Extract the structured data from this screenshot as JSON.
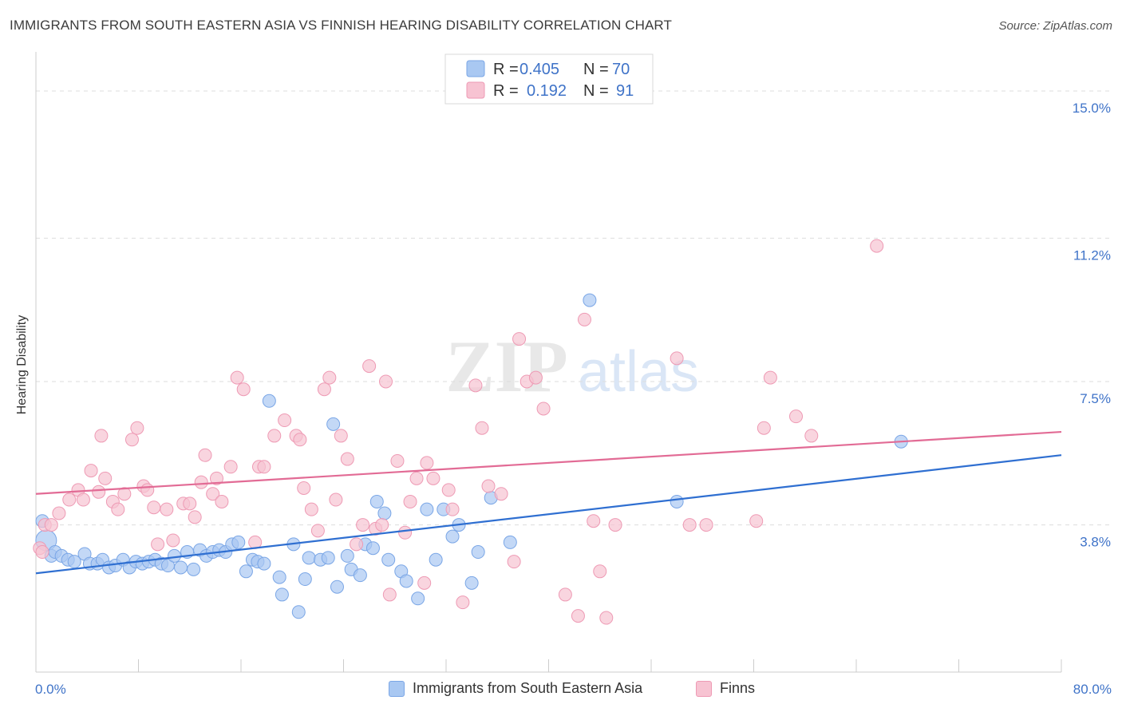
{
  "header": {
    "title": "IMMIGRANTS FROM SOUTH EASTERN ASIA VS FINNISH HEARING DISABILITY CORRELATION CHART",
    "source": "Source: ZipAtlas.com"
  },
  "watermark": {
    "zip": "ZIP",
    "atlas": "atlas"
  },
  "legend": {
    "items": [
      {
        "r_label": "R =",
        "r_value": "0.405",
        "n_label": "N =",
        "n_value": "70",
        "color": "#a9c8f2",
        "stroke": "#7aa6e6"
      },
      {
        "r_label": "R =",
        "r_value": "0.192",
        "n_label": "N =",
        "n_value": "91",
        "color": "#f7c3d2",
        "stroke": "#ee9ab4"
      }
    ]
  },
  "bottom_legend": {
    "series1": "Immigrants from South Eastern Asia",
    "series2": "Finns"
  },
  "colors": {
    "blue_line": "#2f6fd1",
    "pink_line": "#e26b95",
    "blue_fill": "#a9c8f2",
    "pink_fill": "#f7c3d2",
    "axis_text": "#3f73c8",
    "grid": "#dddddd"
  },
  "chart_data": {
    "type": "scatter",
    "title": "IMMIGRANTS FROM SOUTH EASTERN ASIA VS FINNISH HEARING DISABILITY CORRELATION CHART",
    "xlabel": "",
    "ylabel": "Hearing Disability",
    "xlim": [
      0,
      80
    ],
    "ylim": [
      0,
      15.7
    ],
    "x_tick_labels": [
      "0.0%",
      "80.0%"
    ],
    "y_ticks": [
      3.8,
      7.5,
      11.2,
      15.0
    ],
    "y_tick_labels": [
      "3.8%",
      "7.5%",
      "11.2%",
      "15.0%"
    ],
    "grid": "horizontal dashed",
    "legend_position": "top-center",
    "series": [
      {
        "name": "Immigrants from South Eastern Asia",
        "color": "#a9c8f2",
        "trend": {
          "x": [
            0,
            80
          ],
          "y": [
            2.55,
            5.6
          ]
        },
        "points": [
          [
            0.5,
            3.9
          ],
          [
            0.8,
            3.4
          ],
          [
            1.2,
            3.0
          ],
          [
            1.5,
            3.1
          ],
          [
            2.0,
            3.0
          ],
          [
            2.5,
            2.9
          ],
          [
            3.0,
            2.85
          ],
          [
            3.8,
            3.05
          ],
          [
            4.2,
            2.8
          ],
          [
            4.8,
            2.8
          ],
          [
            5.2,
            2.9
          ],
          [
            5.7,
            2.7
          ],
          [
            6.2,
            2.75
          ],
          [
            6.8,
            2.9
          ],
          [
            7.3,
            2.7
          ],
          [
            7.8,
            2.85
          ],
          [
            8.3,
            2.8
          ],
          [
            8.8,
            2.85
          ],
          [
            9.3,
            2.9
          ],
          [
            9.8,
            2.8
          ],
          [
            10.3,
            2.75
          ],
          [
            10.8,
            3.0
          ],
          [
            11.3,
            2.7
          ],
          [
            11.8,
            3.1
          ],
          [
            12.3,
            2.65
          ],
          [
            12.8,
            3.15
          ],
          [
            13.3,
            3.0
          ],
          [
            13.8,
            3.1
          ],
          [
            14.3,
            3.15
          ],
          [
            14.8,
            3.1
          ],
          [
            15.3,
            3.3
          ],
          [
            15.8,
            3.35
          ],
          [
            16.4,
            2.6
          ],
          [
            16.9,
            2.9
          ],
          [
            17.3,
            2.85
          ],
          [
            17.8,
            2.8
          ],
          [
            18.2,
            7.0
          ],
          [
            19.0,
            2.45
          ],
          [
            19.2,
            2.0
          ],
          [
            20.1,
            3.3
          ],
          [
            20.5,
            1.55
          ],
          [
            21.0,
            2.4
          ],
          [
            21.3,
            2.95
          ],
          [
            22.2,
            2.9
          ],
          [
            22.8,
            2.95
          ],
          [
            23.2,
            6.4
          ],
          [
            23.5,
            2.2
          ],
          [
            24.3,
            3.0
          ],
          [
            24.6,
            2.65
          ],
          [
            25.3,
            2.5
          ],
          [
            25.7,
            3.3
          ],
          [
            26.3,
            3.2
          ],
          [
            26.6,
            4.4
          ],
          [
            27.2,
            4.1
          ],
          [
            27.5,
            2.9
          ],
          [
            28.5,
            2.6
          ],
          [
            28.9,
            2.35
          ],
          [
            29.8,
            1.9
          ],
          [
            30.5,
            4.2
          ],
          [
            31.2,
            2.9
          ],
          [
            31.8,
            4.2
          ],
          [
            32.5,
            3.5
          ],
          [
            33.0,
            3.8
          ],
          [
            34.0,
            2.3
          ],
          [
            34.5,
            3.1
          ],
          [
            35.5,
            4.5
          ],
          [
            37.0,
            3.35
          ],
          [
            43.2,
            9.6
          ],
          [
            50.0,
            4.4
          ],
          [
            67.5,
            5.95
          ]
        ]
      },
      {
        "name": "Finns",
        "color": "#f7c3d2",
        "trend": {
          "x": [
            0,
            80
          ],
          "y": [
            4.6,
            6.2
          ]
        },
        "points": [
          [
            0.3,
            3.2
          ],
          [
            0.7,
            3.8
          ],
          [
            1.2,
            3.8
          ],
          [
            1.8,
            4.1
          ],
          [
            2.6,
            4.45
          ],
          [
            3.3,
            4.7
          ],
          [
            3.7,
            4.45
          ],
          [
            4.3,
            5.2
          ],
          [
            4.9,
            4.65
          ],
          [
            5.1,
            6.1
          ],
          [
            5.4,
            5.0
          ],
          [
            6.0,
            4.4
          ],
          [
            6.4,
            4.2
          ],
          [
            6.9,
            4.6
          ],
          [
            7.5,
            6.0
          ],
          [
            7.9,
            6.3
          ],
          [
            8.4,
            4.8
          ],
          [
            8.7,
            4.7
          ],
          [
            9.2,
            4.25
          ],
          [
            9.5,
            3.3
          ],
          [
            10.2,
            4.2
          ],
          [
            10.7,
            3.4
          ],
          [
            11.5,
            4.35
          ],
          [
            12.0,
            4.35
          ],
          [
            12.4,
            4.0
          ],
          [
            12.9,
            4.9
          ],
          [
            13.2,
            5.6
          ],
          [
            13.8,
            4.6
          ],
          [
            14.1,
            5.0
          ],
          [
            14.5,
            4.4
          ],
          [
            15.2,
            5.3
          ],
          [
            15.7,
            7.6
          ],
          [
            16.2,
            7.3
          ],
          [
            17.1,
            3.35
          ],
          [
            17.4,
            5.3
          ],
          [
            17.8,
            5.3
          ],
          [
            18.6,
            6.1
          ],
          [
            19.4,
            6.5
          ],
          [
            20.3,
            6.1
          ],
          [
            20.6,
            6.0
          ],
          [
            20.9,
            4.75
          ],
          [
            21.5,
            4.2
          ],
          [
            22.0,
            3.65
          ],
          [
            22.5,
            7.3
          ],
          [
            22.9,
            7.6
          ],
          [
            23.4,
            4.45
          ],
          [
            23.8,
            6.1
          ],
          [
            24.3,
            5.5
          ],
          [
            25.0,
            3.3
          ],
          [
            25.5,
            3.8
          ],
          [
            26.0,
            7.9
          ],
          [
            26.5,
            3.7
          ],
          [
            27.0,
            3.8
          ],
          [
            27.3,
            7.5
          ],
          [
            27.6,
            2.0
          ],
          [
            28.2,
            5.45
          ],
          [
            28.8,
            3.6
          ],
          [
            29.2,
            4.4
          ],
          [
            29.7,
            5.0
          ],
          [
            30.3,
            2.3
          ],
          [
            30.5,
            5.4
          ],
          [
            31.0,
            5.0
          ],
          [
            32.2,
            4.7
          ],
          [
            32.5,
            4.2
          ],
          [
            33.3,
            1.8
          ],
          [
            34.3,
            7.4
          ],
          [
            34.8,
            6.3
          ],
          [
            35.3,
            4.8
          ],
          [
            36.3,
            4.6
          ],
          [
            37.3,
            2.85
          ],
          [
            37.7,
            8.6
          ],
          [
            38.3,
            7.5
          ],
          [
            39.0,
            7.6
          ],
          [
            39.6,
            6.8
          ],
          [
            41.3,
            2.0
          ],
          [
            42.3,
            1.45
          ],
          [
            42.8,
            9.1
          ],
          [
            43.5,
            3.9
          ],
          [
            44.0,
            2.6
          ],
          [
            44.5,
            1.4
          ],
          [
            45.2,
            3.8
          ],
          [
            50.0,
            8.1
          ],
          [
            51.0,
            3.8
          ],
          [
            52.3,
            3.8
          ],
          [
            56.2,
            3.9
          ],
          [
            56.8,
            6.3
          ],
          [
            57.3,
            7.6
          ],
          [
            59.3,
            6.6
          ],
          [
            60.5,
            6.1
          ],
          [
            65.6,
            11.0
          ],
          [
            0.5,
            3.1
          ]
        ]
      }
    ]
  }
}
